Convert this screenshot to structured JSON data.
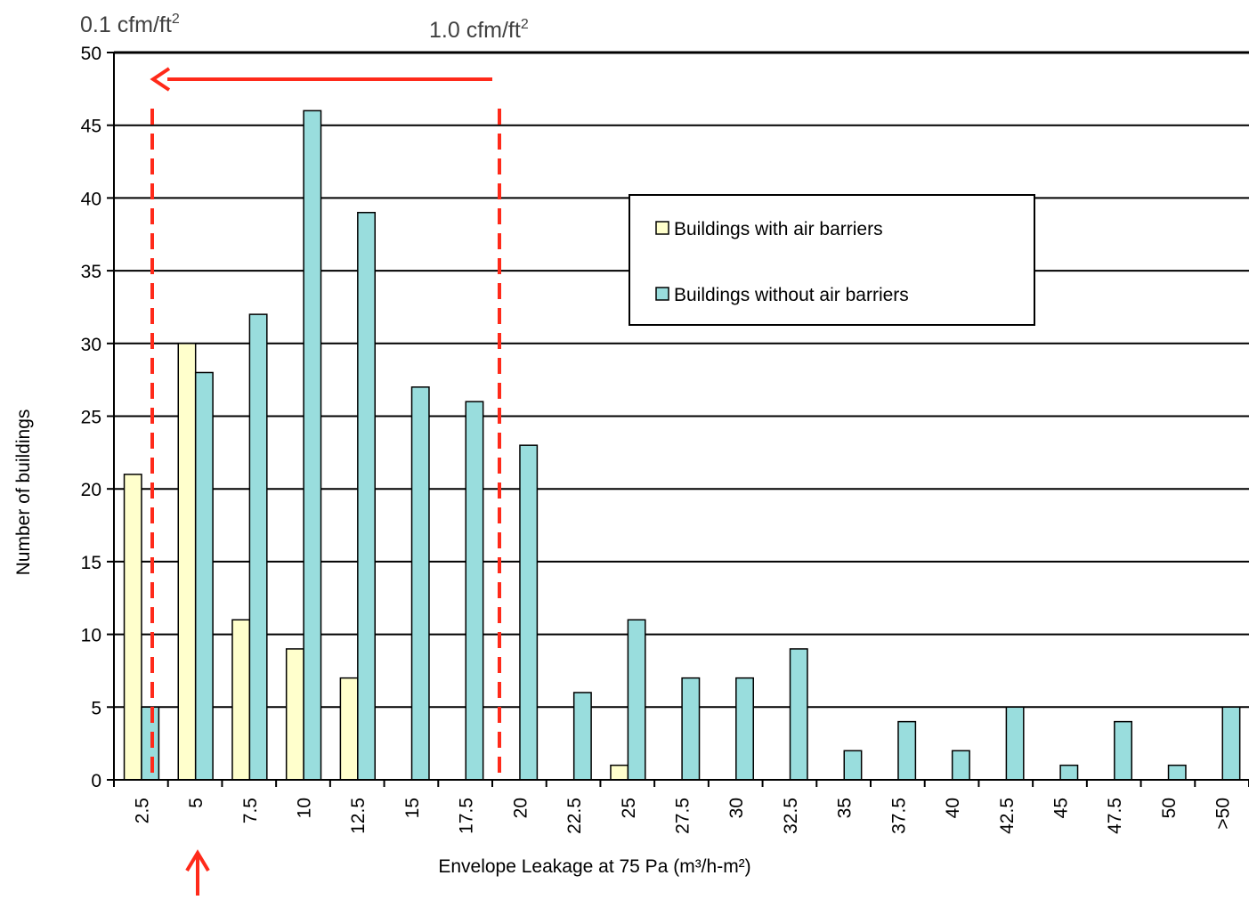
{
  "chart_data": {
    "type": "bar",
    "xlabel": "Envelope Leakage at 75 Pa (m³/h-m²)",
    "ylabel": "Number of buildings",
    "ylim": [
      0,
      50
    ],
    "yticks": [
      "0",
      "5",
      "10",
      "15",
      "20",
      "25",
      "30",
      "35",
      "40",
      "45",
      "50"
    ],
    "grid": true,
    "legend_position": "top-right",
    "categories": [
      "2.5",
      "5",
      "7.5",
      "10",
      "12.5",
      "15",
      "17.5",
      "20",
      "22.5",
      "25",
      "27.5",
      "30",
      "32.5",
      "35",
      "37.5",
      "40",
      "42.5",
      "45",
      "47.5",
      "50",
      ">50"
    ],
    "series": [
      {
        "name": "Buildings with air barriers",
        "color": "#ffffcc",
        "values": [
          21,
          30,
          11,
          9,
          7,
          0,
          0,
          0,
          0,
          1,
          0,
          0,
          0,
          0,
          0,
          0,
          0,
          0,
          0,
          0,
          0
        ]
      },
      {
        "name": "Buildings without air barriers",
        "color": "#99dddd",
        "values": [
          5,
          28,
          32,
          46,
          39,
          27,
          26,
          23,
          6,
          11,
          7,
          7,
          9,
          2,
          4,
          2,
          5,
          1,
          4,
          1,
          5
        ]
      }
    ],
    "annotations": {
      "left_threshold_label": "0.1 cfm/ft",
      "left_threshold_sup": "2",
      "right_threshold_label": "1.0 cfm/ft",
      "right_threshold_sup": "2",
      "marker_color": "#ff2a1a"
    }
  }
}
